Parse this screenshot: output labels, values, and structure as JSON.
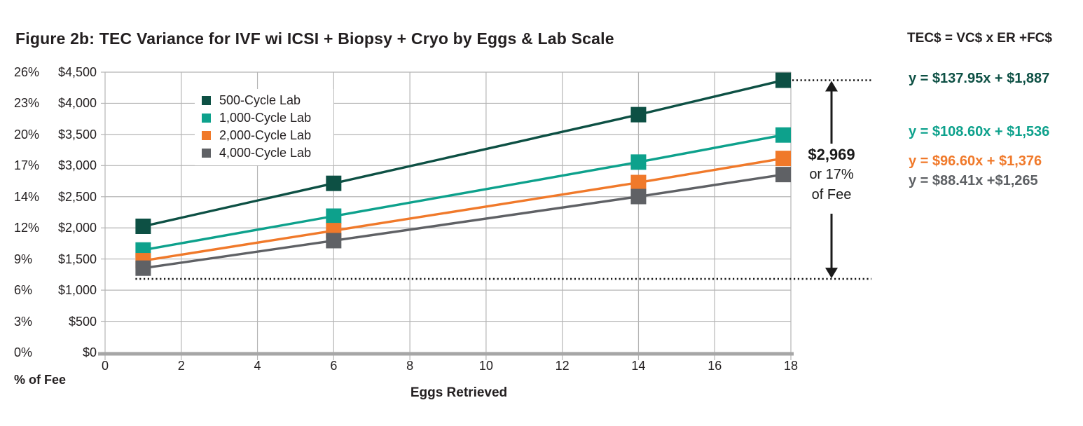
{
  "title": "Figure 2b: TEC Variance for IVF wi ICSI + Biopsy + Cryo by Eggs & Lab Scale",
  "formula": "TEC$ = VC$ x ER +FC$",
  "equations": [
    {
      "text": "y = $137.95x + $1,887",
      "color": "#0d5044"
    },
    {
      "text": "y = $108.60x + $1,536",
      "color": "#0da18c"
    },
    {
      "text": "y = $96.60x + $1,376",
      "color": "#f0792a"
    },
    {
      "text": "y = $88.41x +$1,265",
      "color": "#5d6064"
    }
  ],
  "annotation": {
    "amount": "$2,969",
    "line2": "or 17%",
    "line3": "of Fee"
  },
  "chart_data": {
    "type": "line",
    "title": "Figure 2b: TEC Variance for IVF wi ICSI + Biopsy + Cryo by Eggs & Lab Scale",
    "xlabel": "Eggs Retrieved",
    "pct_axis_label": "% of Fee",
    "x": [
      1,
      6,
      14,
      18
    ],
    "series": [
      {
        "name": "500-Cycle Lab",
        "color": "#0d5044",
        "values": [
          2025,
          2715,
          3818,
          4370
        ],
        "equation": "y = $137.95x + $1,887"
      },
      {
        "name": "1,000-Cycle Lab",
        "color": "#0da18c",
        "values": [
          1645,
          2188,
          3056,
          3491
        ],
        "equation": "y = $108.60x + $1,536"
      },
      {
        "name": "2,000-Cycle Lab",
        "color": "#f0792a",
        "values": [
          1473,
          1956,
          2728,
          3115
        ],
        "equation": "y = $96.60x + $1,376"
      },
      {
        "name": "4,000-Cycle Lab",
        "color": "#5f6165",
        "values": [
          1353,
          1795,
          2503,
          2856
        ],
        "equation": "y = $88.41x +$1,265"
      }
    ],
    "x_ticks": [
      0,
      2,
      4,
      6,
      8,
      10,
      12,
      14,
      16,
      18
    ],
    "x_tick_labels": [
      "0",
      "2",
      "4",
      "6",
      "8",
      "10",
      "12",
      "14",
      "16",
      "18"
    ],
    "y_ticks": [
      {
        "pct": "26%",
        "usd": "$4,500",
        "value": 4500
      },
      {
        "pct": "23%",
        "usd": "$4,000",
        "value": 4000
      },
      {
        "pct": "20%",
        "usd": "$3,500",
        "value": 3500
      },
      {
        "pct": "17%",
        "usd": "$3,000",
        "value": 3000
      },
      {
        "pct": "14%",
        "usd": "$2,500",
        "value": 2500
      },
      {
        "pct": "12%",
        "usd": "$2,000",
        "value": 2000
      },
      {
        "pct": "9%",
        "usd": "$1,500",
        "value": 1500
      },
      {
        "pct": "6%",
        "usd": "$1,000",
        "value": 1000
      },
      {
        "pct": "3%",
        "usd": "$500",
        "value": 500
      },
      {
        "pct": "0%",
        "usd": "$0",
        "value": 0
      }
    ],
    "xlim": [
      0,
      18
    ],
    "ylim": [
      0,
      4500
    ],
    "grid": true,
    "legend_position": "inside-top-left",
    "annotation_top_value": 4370,
    "annotation_bottom_value": 1180,
    "grid_color": "#b5b5b5",
    "axis_color": "#a6a6a6",
    "annotation_color": "#1a1a1a"
  }
}
